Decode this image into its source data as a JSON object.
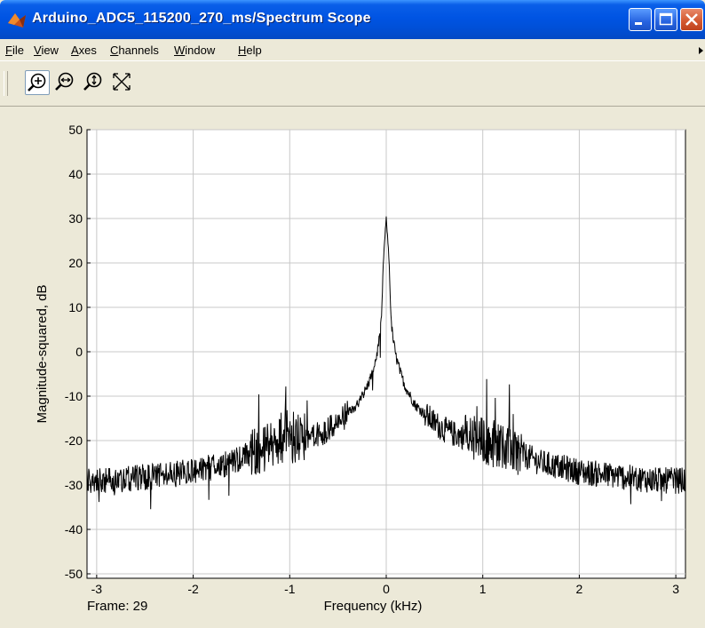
{
  "window": {
    "title": "Arduino_ADC5_115200_270_ms/Spectrum Scope"
  },
  "menu": {
    "items": [
      {
        "accel": "F",
        "rest": "ile"
      },
      {
        "accel": "V",
        "rest": "iew"
      },
      {
        "accel": "A",
        "rest": "xes"
      },
      {
        "accel": "C",
        "rest": "hannels"
      },
      {
        "accel": "W",
        "rest": "indow"
      },
      {
        "accel": "H",
        "rest": "elp"
      }
    ]
  },
  "toolbar": {
    "tools": [
      "zoom-in-icon",
      "zoom-x-icon",
      "zoom-y-icon",
      "autoscale-icon"
    ]
  },
  "status": {
    "frame": "Frame: 29"
  },
  "colors": {
    "titlebar": "#0054e3",
    "plot_bg": "#ffffff",
    "grid": "#c8c8c8",
    "trace": "#000000",
    "chrome": "#ece9d8"
  },
  "chart_data": {
    "type": "line",
    "xlabel": "Frequency (kHz)",
    "ylabel": "Magnitude-squared, dB",
    "xlim": [
      -3.1,
      3.1
    ],
    "ylim": [
      -51,
      50
    ],
    "xticks": [
      -3,
      -2,
      -1,
      0,
      1,
      2,
      3
    ],
    "yticks": [
      50,
      40,
      30,
      20,
      10,
      0,
      -10,
      -20,
      -30,
      -40,
      -50
    ],
    "grid": true,
    "series": [
      {
        "x": [
          -3.1,
          -3.0,
          -2.8,
          -2.6,
          -2.4,
          -2.2,
          -2.0,
          -1.8,
          -1.6,
          -1.4,
          -1.3,
          -1.2,
          -1.1,
          -1.0,
          -0.9,
          -0.8,
          -0.7,
          -0.6,
          -0.5,
          -0.4,
          -0.3,
          -0.2,
          -0.15,
          -0.1,
          -0.07,
          -0.05,
          -0.03,
          -0.02,
          0.0,
          0.02,
          0.03,
          0.05,
          0.07,
          0.1,
          0.15,
          0.2,
          0.3,
          0.4,
          0.5,
          0.6,
          0.7,
          0.8,
          0.9,
          1.0,
          1.1,
          1.2,
          1.3,
          1.4,
          1.6,
          1.8,
          2.0,
          2.2,
          2.4,
          2.6,
          2.8,
          3.0,
          3.1
        ],
        "values": [
          -29,
          -29,
          -29,
          -28.5,
          -28,
          -27.5,
          -27,
          -26,
          -25,
          -23,
          -22,
          -21,
          -20.5,
          -20,
          -19.5,
          -19,
          -18.5,
          -17.5,
          -16,
          -14,
          -12,
          -8,
          -5,
          -1,
          3,
          7,
          20,
          24,
          30,
          24,
          20,
          7,
          3,
          -1,
          -5,
          -8,
          -12,
          -14,
          -16,
          -17.5,
          -18.5,
          -19,
          -19.5,
          -20,
          -20.5,
          -21,
          -22,
          -23,
          -25,
          -26,
          -27,
          -27.5,
          -28,
          -28.5,
          -29,
          -29,
          -29
        ]
      }
    ]
  }
}
